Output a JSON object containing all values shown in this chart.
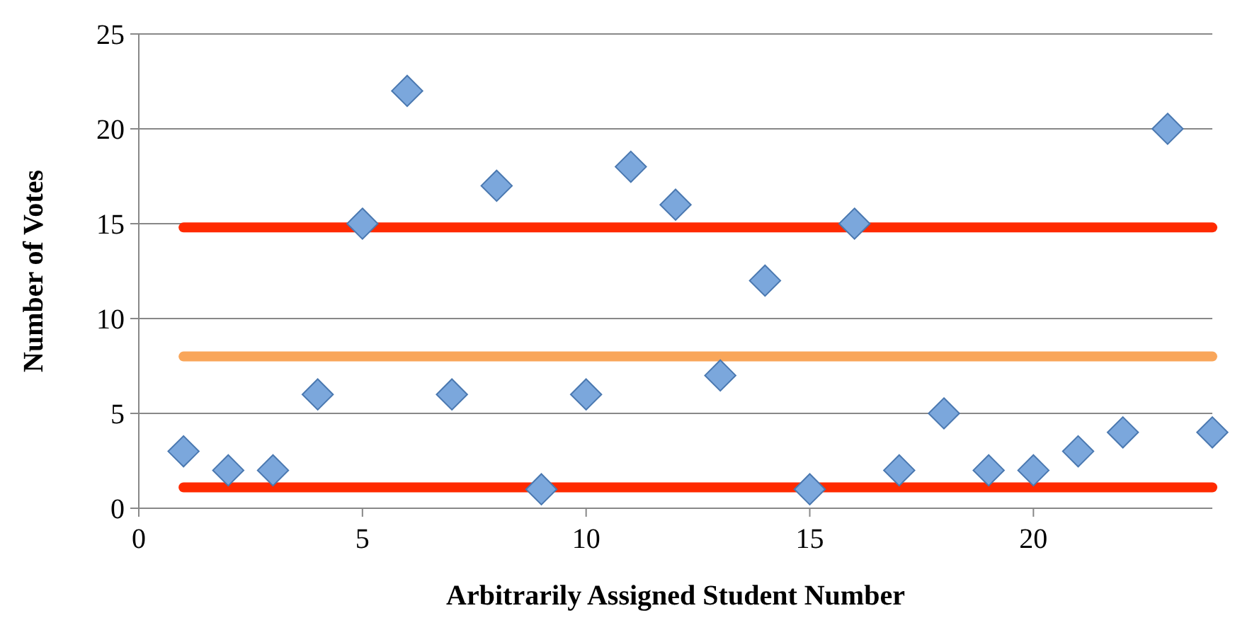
{
  "chart_data": {
    "type": "scatter",
    "xlabel": "Arbitrarily Assigned Student Number",
    "ylabel": "Number of Votes",
    "xlim": [
      0,
      24
    ],
    "xticks": [
      0,
      5,
      10,
      15,
      20
    ],
    "ylim": [
      0,
      25
    ],
    "yticks": [
      0,
      5,
      10,
      15,
      20,
      25
    ],
    "grid": "y",
    "series": [
      {
        "type": "line",
        "color": "#ff2a00",
        "x": [
          1,
          24
        ],
        "values": [
          14.8,
          14.8
        ],
        "line_style": "solid"
      },
      {
        "type": "line",
        "color": "#f9a65a",
        "x": [
          1,
          24
        ],
        "values": [
          8,
          8
        ],
        "line_style": "solid"
      },
      {
        "type": "line",
        "color": "#ff2a00",
        "x": [
          1,
          24
        ],
        "values": [
          1.1,
          1.1
        ],
        "line_style": "solid"
      },
      {
        "color": "#7ba7dc",
        "marker": "diamond",
        "x": [
          1,
          2,
          3,
          4,
          5,
          6,
          7,
          8,
          9,
          10,
          11,
          12,
          13,
          14,
          15,
          16,
          17,
          18,
          19,
          20,
          21,
          22,
          23,
          24
        ],
        "values": [
          3,
          2,
          2,
          6,
          15,
          22,
          6,
          17,
          1,
          6,
          18,
          16,
          7,
          12,
          1,
          15,
          2,
          5,
          2,
          2,
          3,
          4,
          20,
          4
        ]
      }
    ]
  }
}
